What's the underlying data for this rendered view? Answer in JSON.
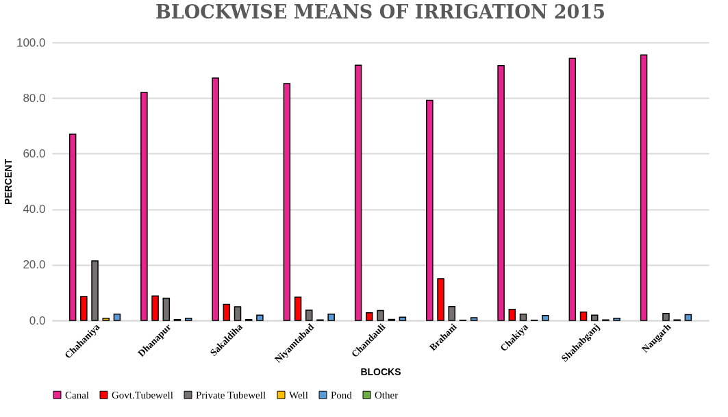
{
  "chart_data": {
    "type": "bar",
    "title": "BLOCKWISE MEANS OF IRRIGATION 2015",
    "xlabel": "BLOCKS",
    "ylabel": "PERCENT",
    "categories": [
      "Chahaniya",
      "Dhanapur",
      "Sakaldiha",
      "Niyamtabad",
      "Chandauli",
      "Brahani",
      "Chakiya",
      "Shahabganj",
      "Naugarh"
    ],
    "series": [
      {
        "name": "Canal",
        "color": "#e7258f",
        "values": [
          67.0,
          82.0,
          87.2,
          85.2,
          91.8,
          79.2,
          91.7,
          94.3,
          95.5
        ]
      },
      {
        "name": "Govt.Tubewell",
        "color": "#ff0000",
        "values": [
          8.6,
          8.8,
          5.8,
          8.4,
          2.8,
          15.0,
          4.0,
          3.0,
          null
        ]
      },
      {
        "name": "Private Tubewell",
        "color": "#767171",
        "values": [
          21.4,
          8.0,
          4.9,
          3.7,
          3.6,
          5.0,
          2.3,
          1.9,
          2.5
        ]
      },
      {
        "name": "Well",
        "color": "#ffc000",
        "values": [
          0.8,
          0.3,
          0.3,
          0.2,
          0.4,
          0.1,
          0.1,
          0.2,
          0.2
        ]
      },
      {
        "name": "Pond",
        "color": "#5b9bd5",
        "values": [
          2.3,
          0.8,
          1.9,
          2.3,
          1.2,
          1.0,
          1.8,
          0.8,
          2.1
        ]
      },
      {
        "name": "Other",
        "color": "#70ad47",
        "values": [
          null,
          null,
          null,
          null,
          null,
          null,
          null,
          null,
          null
        ]
      }
    ],
    "ylim": [
      0,
      100
    ],
    "yticks": [
      {
        "value": 0,
        "label": "0.0"
      },
      {
        "value": 20,
        "label": "20.0"
      },
      {
        "value": 40,
        "label": "40.0"
      },
      {
        "value": 60,
        "label": "60.0"
      },
      {
        "value": 80,
        "label": "80.0"
      },
      {
        "value": 100,
        "label": "100.0"
      }
    ],
    "grid": "y",
    "legend": "bottom"
  }
}
